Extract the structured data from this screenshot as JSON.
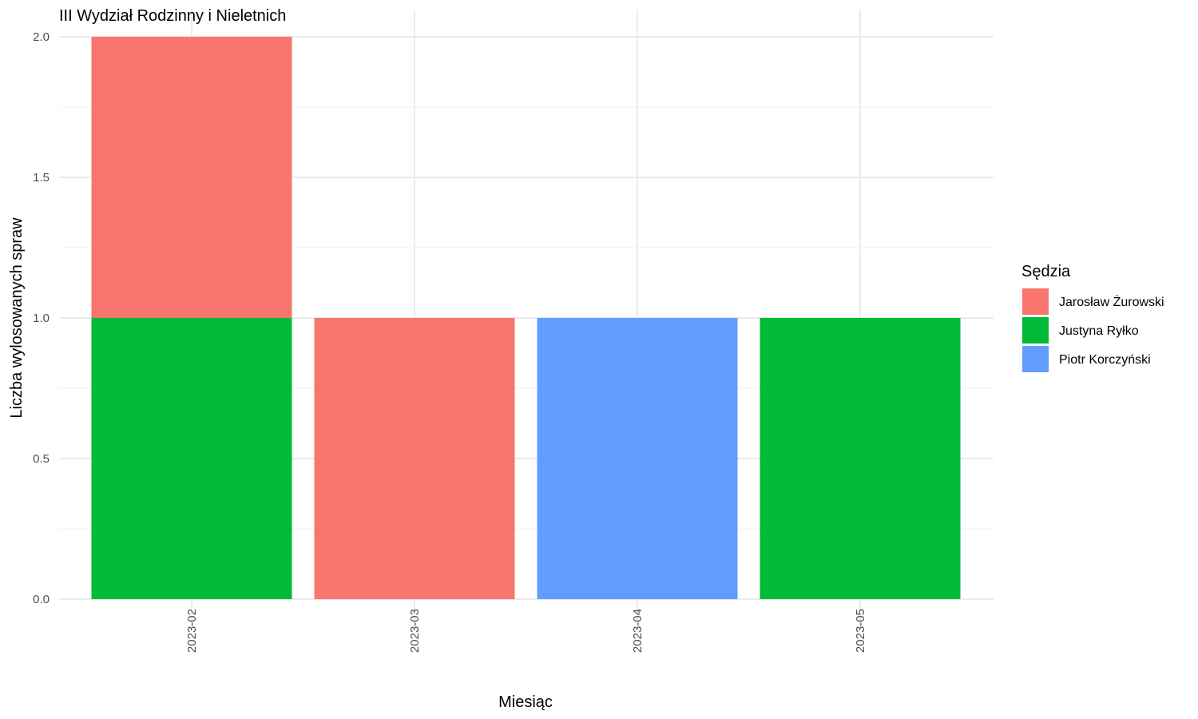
{
  "chart_data": {
    "type": "bar",
    "stacked": true,
    "title": "III Wydział Rodzinny i Nieletnich",
    "xlabel": "Miesiąc",
    "ylabel": "Liczba wylosowanych spraw",
    "categories": [
      "2023-02",
      "2023-03",
      "2023-04",
      "2023-05"
    ],
    "ylim": [
      0,
      2
    ],
    "yticks": [
      "0.0",
      "0.5",
      "1.0",
      "1.5",
      "2.0"
    ],
    "grid": true,
    "legend": {
      "title": "Sędzia",
      "placement": "right"
    },
    "series": [
      {
        "name": "Jarosław Żurowski",
        "color": "#F8766D",
        "values": [
          1,
          1,
          0,
          0
        ]
      },
      {
        "name": "Justyna Ryłko",
        "color": "#00BA38",
        "values": [
          1,
          0,
          0,
          1
        ]
      },
      {
        "name": "Piotr Korczyński",
        "color": "#619CFF",
        "values": [
          0,
          0,
          1,
          0
        ]
      }
    ],
    "stack_order_bottom_to_top": [
      "Justyna Ryłko",
      "Piotr Korczyński",
      "Jarosław Żurowski"
    ]
  }
}
